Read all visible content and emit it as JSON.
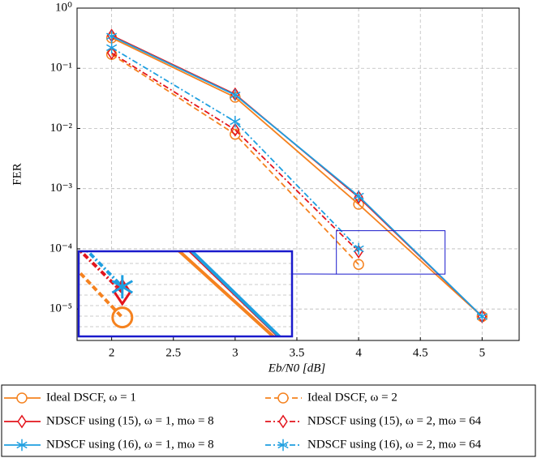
{
  "chart_data": {
    "type": "line",
    "x_label": "Eb/N0 [dB]",
    "y_label": "FER",
    "x": [
      2,
      3,
      4,
      5
    ],
    "series": [
      {
        "name": "Ideal DSCF, ω = 1",
        "color": "#f5821f",
        "dash": "solid",
        "marker": "circle",
        "values": [
          0.32,
          0.033,
          0.00055,
          7.5e-06
        ]
      },
      {
        "name": "Ideal DSCF, ω = 2",
        "color": "#f5821f",
        "dash": "dashed",
        "marker": "circle",
        "values": [
          0.17,
          0.008,
          5.5e-05,
          null
        ]
      },
      {
        "name": "NDSCF using (15), ω = 1, mω = 8",
        "color": "#e3141c",
        "dash": "solid",
        "marker": "diamond",
        "values": [
          0.35,
          0.037,
          0.00072,
          7.5e-06
        ]
      },
      {
        "name": "NDSCF using (15), ω = 2, mω = 64",
        "color": "#e3141c",
        "dash": "dashdot",
        "marker": "diamond",
        "values": [
          0.18,
          0.0095,
          9e-05,
          null
        ]
      },
      {
        "name": "NDSCF using (16), ω = 1, mω = 8",
        "color": "#1e9fe0",
        "dash": "solid",
        "marker": "star",
        "values": [
          0.34,
          0.036,
          0.00075,
          7.5e-06
        ]
      },
      {
        "name": "NDSCF using (16), ω = 2, mω = 64",
        "color": "#1e9fe0",
        "dash": "dashdot",
        "marker": "star",
        "values": [
          0.22,
          0.013,
          0.0001,
          null
        ]
      }
    ],
    "xlim": [
      1.72,
      5.3
    ],
    "xticks": [
      2,
      2.5,
      3,
      3.5,
      4,
      4.5,
      5
    ],
    "ylim": [
      3e-06,
      1
    ],
    "log_y": true,
    "yticks": [
      {
        "value": 1,
        "label": "10⁰"
      },
      {
        "value": 0.1,
        "label": "10⁻¹"
      },
      {
        "value": 0.01,
        "label": "10⁻²"
      },
      {
        "value": 0.001,
        "label": "10⁻³"
      },
      {
        "value": 0.0001,
        "label": "10⁻⁴"
      },
      {
        "value": 1e-05,
        "label": "10⁻⁵"
      }
    ],
    "grid": true,
    "legend": "bottom",
    "inset": {
      "xlim": [
        3.82,
        4.7
      ],
      "ylim": [
        3.8e-05,
        0.0002
      ],
      "color": "#1a1acc"
    }
  }
}
